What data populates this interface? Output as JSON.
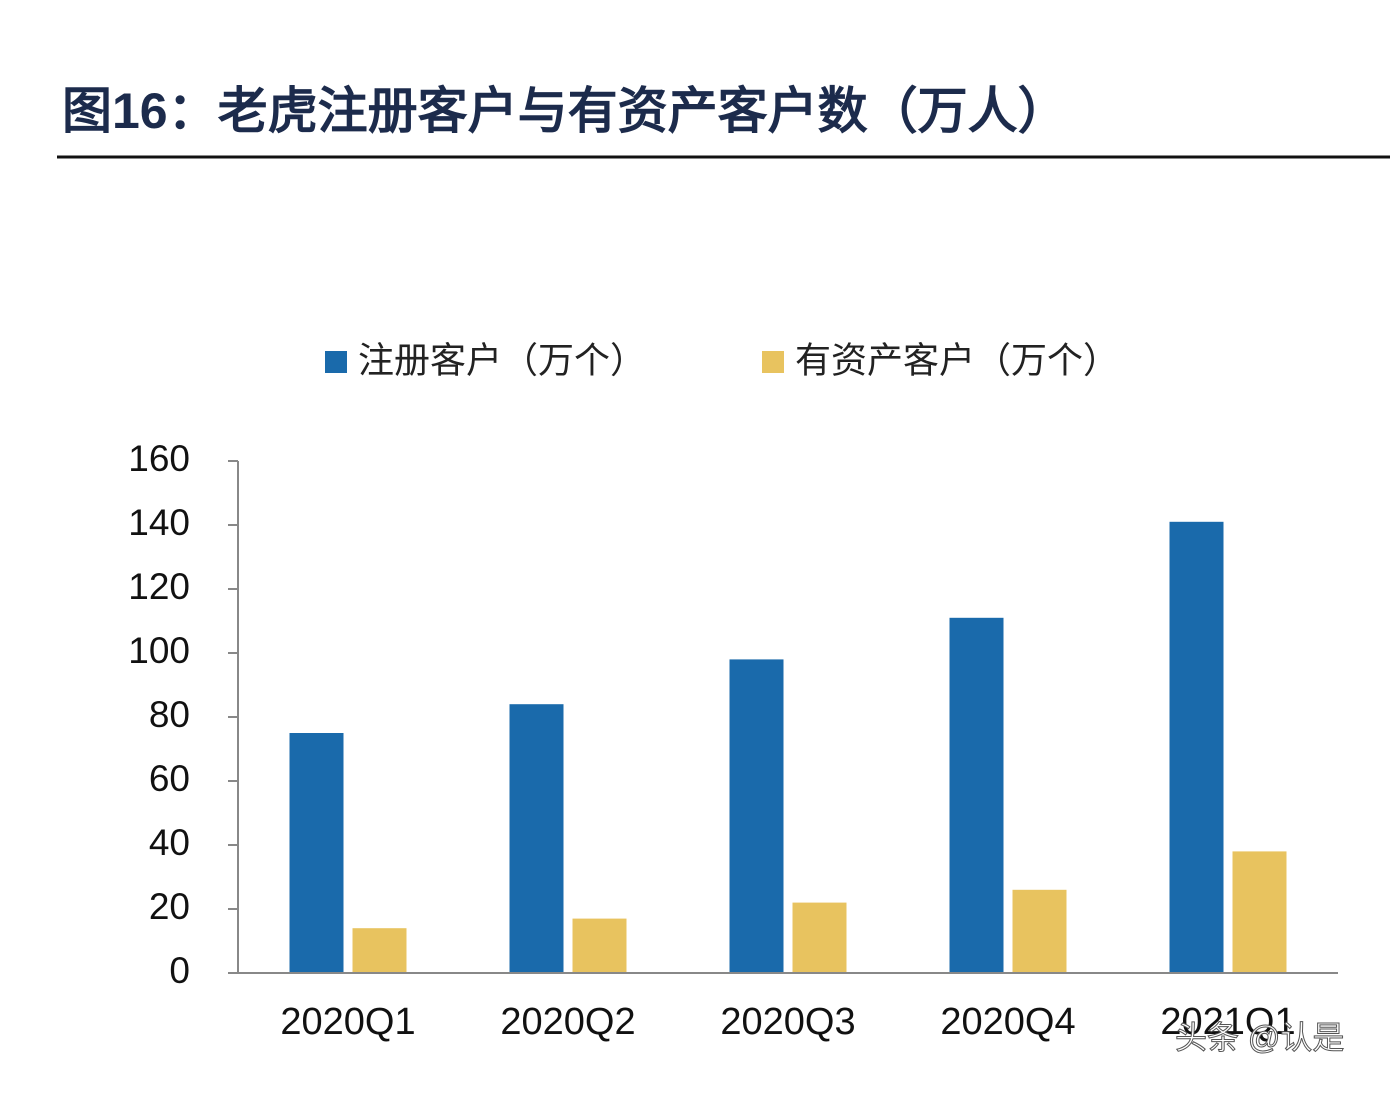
{
  "chart_data": {
    "type": "bar",
    "title": "图16：老虎注册客户与有资产客户数（万人）",
    "categories": [
      "2020Q1",
      "2020Q2",
      "2020Q3",
      "2020Q4",
      "2021Q1"
    ],
    "series": [
      {
        "name": "注册客户（万个）",
        "color": "#1a6aab",
        "values": [
          75,
          84,
          98,
          111,
          141
        ]
      },
      {
        "name": "有资产客户（万个）",
        "color": "#e8c35f",
        "values": [
          14,
          17,
          22,
          26,
          38
        ]
      }
    ],
    "ylim": [
      0,
      160
    ],
    "yticks": [
      0,
      20,
      40,
      60,
      80,
      100,
      120,
      140,
      160
    ],
    "legend": "top",
    "watermark": "头条 @认是"
  }
}
